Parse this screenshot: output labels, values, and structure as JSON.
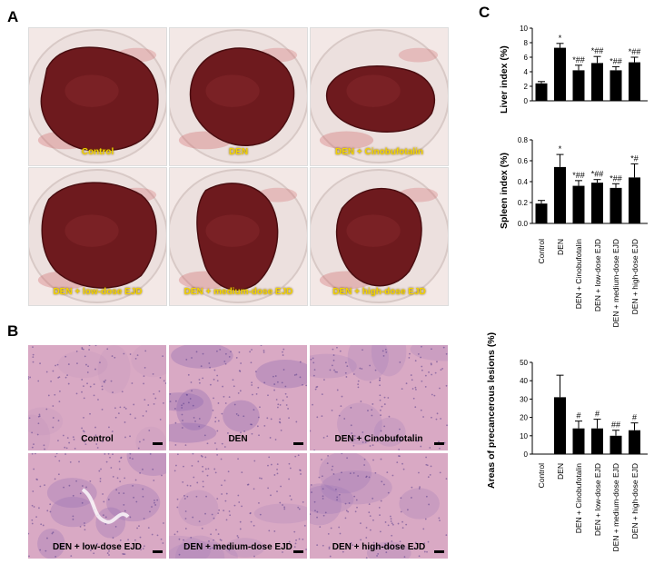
{
  "panels": {
    "a": "A",
    "b": "B",
    "c": "C"
  },
  "gross_photos": [
    {
      "caption": "Control"
    },
    {
      "caption": "DEN"
    },
    {
      "caption": "DEN + Cinobufotalin"
    },
    {
      "caption": "DEN + low-dose EJD"
    },
    {
      "caption": "DEN + medium-dose EJD"
    },
    {
      "caption": "DEN + high-dose EJD"
    }
  ],
  "histology": [
    {
      "caption": "Control"
    },
    {
      "caption": "DEN"
    },
    {
      "caption": "DEN + Cinobufotalin"
    },
    {
      "caption": "DEN + low-dose EJD"
    },
    {
      "caption": "DEN + medium-dose EJD"
    },
    {
      "caption": "DEN + high-dose EJD"
    }
  ],
  "colors": {
    "bar": "#000000",
    "liver": "#6e1a1e",
    "plate": "#f3e8e6",
    "he_pink": "#d9a9c4",
    "he_purple": "#8e6bb3",
    "caption_yellow": "#f2d300"
  },
  "chart_data": [
    {
      "type": "bar",
      "categories": [
        "Control",
        "DEN",
        "DEN + Cinobufotalin",
        "DEN + low-dose EJD",
        "DEN + medium-dose EJD",
        "DEN + high-dose EJD"
      ],
      "values": [
        2.4,
        7.3,
        4.2,
        5.2,
        4.2,
        5.3
      ],
      "errors": [
        0.25,
        0.6,
        0.7,
        0.9,
        0.5,
        0.7
      ],
      "annotations": [
        "",
        "*",
        "*##",
        "*##",
        "*##",
        "*##"
      ],
      "ylabel": "Liver index (%)",
      "ylim": [
        0,
        10
      ],
      "yticks": [
        "0",
        "2",
        "4",
        "6",
        "8",
        "10"
      ]
    },
    {
      "type": "bar",
      "categories": [
        "Control",
        "DEN",
        "DEN + Cinobufotalin",
        "DEN + low-dose EJD",
        "DEN + medium-dose EJD",
        "DEN + high-dose EJD"
      ],
      "values": [
        0.19,
        0.54,
        0.36,
        0.39,
        0.34,
        0.44
      ],
      "errors": [
        0.03,
        0.12,
        0.05,
        0.03,
        0.04,
        0.13
      ],
      "annotations": [
        "",
        "*",
        "*##",
        "*##",
        "*##",
        "*#"
      ],
      "ylabel": "Spleen index (%)",
      "ylim": [
        0,
        0.8
      ],
      "yticks": [
        "0.0",
        "0.2",
        "0.4",
        "0.6",
        "0.8"
      ]
    },
    {
      "type": "bar",
      "categories": [
        "Control",
        "DEN",
        "DEN + Cinobufotalin",
        "DEN + low-dose EJD",
        "DEN + medium-dose EJD",
        "DEN + high-dose EJD"
      ],
      "values": [
        0,
        31,
        14,
        14,
        10,
        13
      ],
      "errors": [
        0,
        12,
        4,
        5,
        3,
        4
      ],
      "annotations": [
        "",
        "",
        "#",
        "#",
        "##",
        "#"
      ],
      "ylabel": "Areas of precancerous lesions (%)",
      "ylim": [
        0,
        50
      ],
      "yticks": [
        "0",
        "10",
        "20",
        "30",
        "40",
        "50"
      ]
    }
  ]
}
